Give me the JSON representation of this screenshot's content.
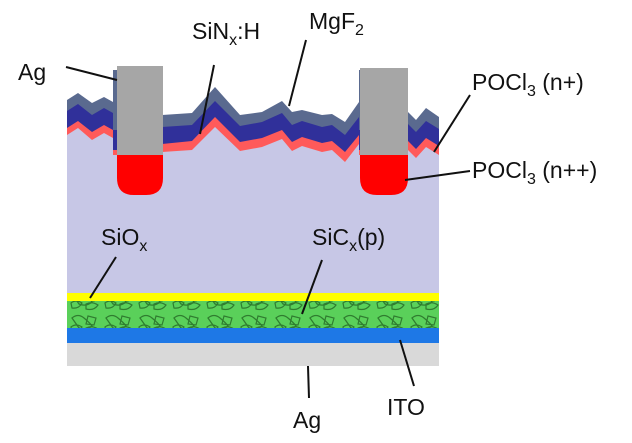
{
  "labels": {
    "ag_top": "Ag",
    "sinx": {
      "main": "SiN",
      "sub": "x",
      "suffix": ":H"
    },
    "mgf2": {
      "main": "MgF",
      "sub": "2"
    },
    "pocl3_n_plus": {
      "main": "POCl",
      "sub": "3",
      "suffix": " (n+)"
    },
    "pocl3_n_plusplus": {
      "main": "POCl",
      "sub": "3",
      "suffix": " (n++)"
    },
    "siox": {
      "main": "SiO",
      "sub": "x"
    },
    "sicx": {
      "main": "SiC",
      "sub": "x",
      "suffix": "(p)"
    },
    "ag_bottom": "Ag",
    "ito": "ITO"
  },
  "colors": {
    "wafer": "#c7c7e6",
    "mgf2": "#5a6a8f",
    "sinx": "#30309a",
    "n_plus": "#ff5a5a",
    "n_plusplus": "#ff0000",
    "contact_ag": "#a6a6a6",
    "siox_layer": "#ffff00",
    "sicx_layer": "#5ad05a",
    "ito_layer": "#1e78e6",
    "rear_ag": "#d9d9d9"
  }
}
